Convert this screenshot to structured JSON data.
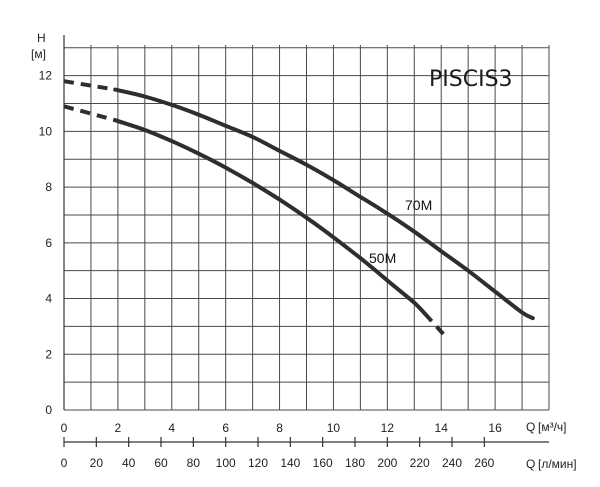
{
  "chart_data": {
    "type": "line",
    "title": "PISCIS3",
    "y_axis": {
      "label": "H",
      "unit": "[м]",
      "range": [
        0,
        13.1
      ],
      "ticks": [
        0,
        2,
        4,
        6,
        8,
        10,
        12
      ],
      "grid_step": 1
    },
    "x_axis": {
      "label": "Q",
      "unit": "[м³/ч]",
      "range": [
        0,
        18
      ],
      "ticks": [
        0,
        2,
        4,
        6,
        8,
        10,
        12,
        14,
        16
      ],
      "grid_step": 1
    },
    "x_axis_secondary": {
      "label": "Q",
      "unit": "[л/мин]",
      "range": [
        0,
        300
      ],
      "ticks": [
        0,
        20,
        40,
        60,
        80,
        100,
        120,
        140,
        160,
        180,
        200,
        220,
        240,
        260
      ]
    },
    "grid": true,
    "series": [
      {
        "name": "70M",
        "dashed_until_x": 1.9,
        "x": [
          0,
          1.9,
          3,
          4,
          5,
          6,
          7,
          8,
          9,
          10,
          11,
          12,
          13,
          14,
          15,
          16,
          17,
          17.4
        ],
        "y": [
          11.8,
          11.5,
          11.25,
          10.95,
          10.6,
          10.2,
          9.8,
          9.3,
          8.8,
          8.25,
          7.65,
          7.05,
          6.4,
          5.7,
          5.0,
          4.25,
          3.5,
          3.3
        ]
      },
      {
        "name": "50M",
        "dashed_after_x": 13.4,
        "dashed_until_x": 1.9,
        "x": [
          0,
          1.9,
          3,
          4,
          5,
          6,
          7,
          8,
          9,
          10,
          11,
          12,
          13,
          13.4,
          14.2
        ],
        "y": [
          10.9,
          10.4,
          10.05,
          9.65,
          9.2,
          8.7,
          8.15,
          7.55,
          6.9,
          6.2,
          5.45,
          4.65,
          3.85,
          3.45,
          2.6
        ]
      }
    ]
  }
}
